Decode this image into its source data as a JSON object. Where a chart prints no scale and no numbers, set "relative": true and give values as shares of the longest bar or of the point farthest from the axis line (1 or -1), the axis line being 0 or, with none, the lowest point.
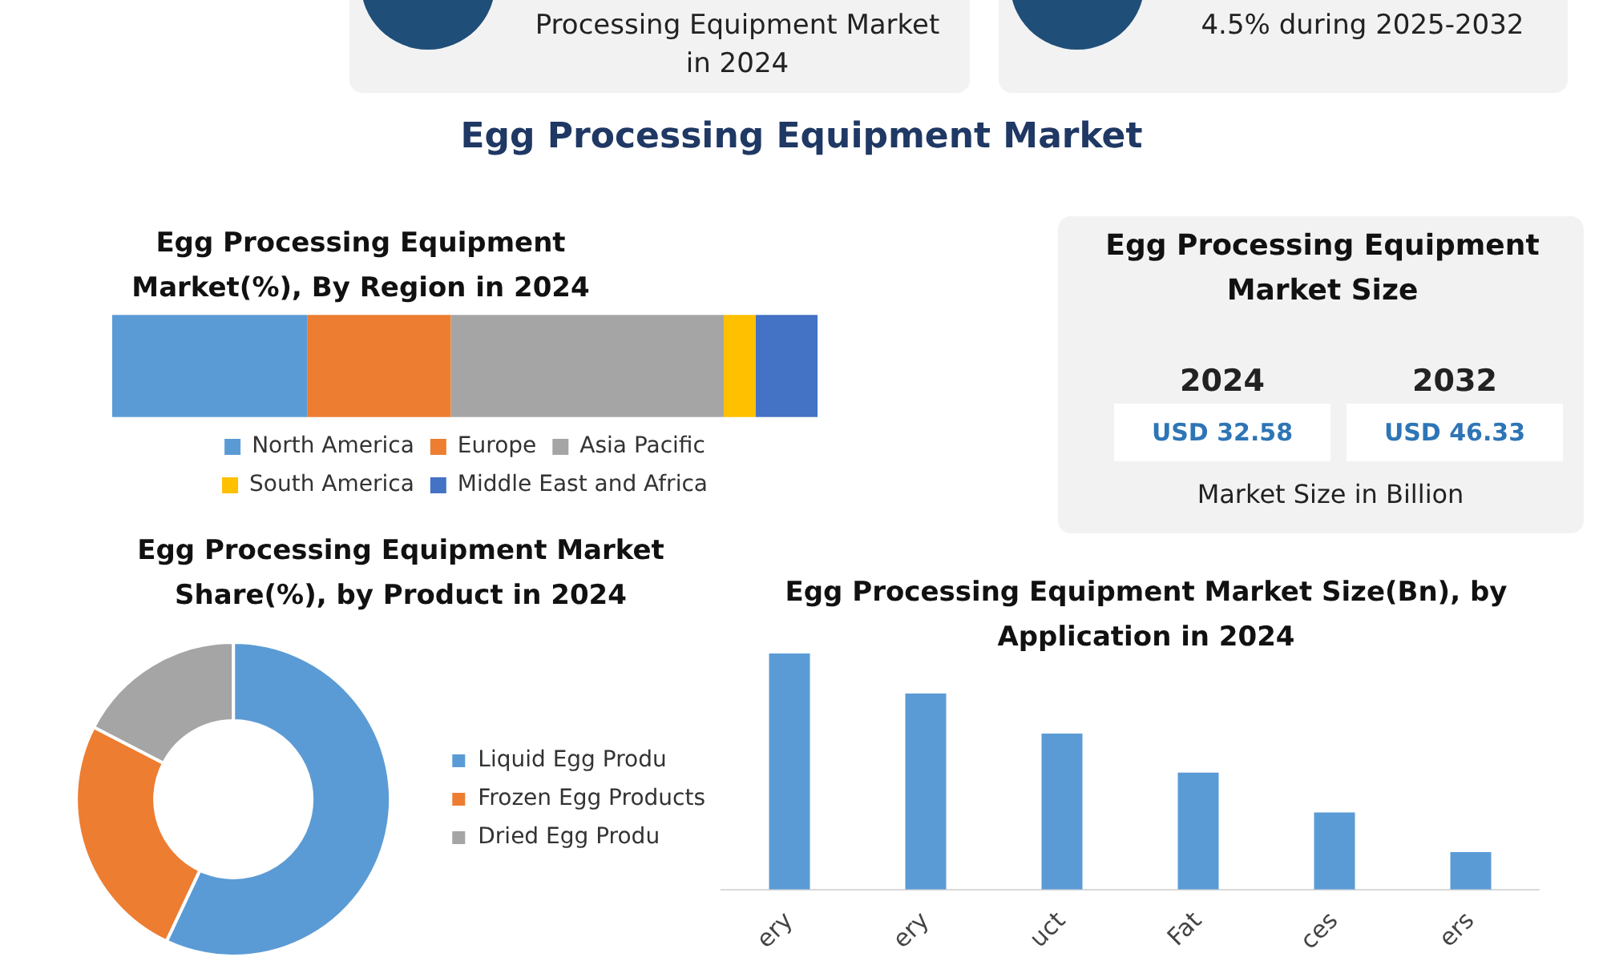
{
  "chart_data": [
    {
      "type": "other",
      "title": "Egg Processing Equipment Market",
      "annotations": [
        "Processing Equipment Market in 2024",
        "4.5% during 2025-2032"
      ]
    },
    {
      "type": "bar",
      "title": "Egg Processing Equipment Market(%), By Region in 2024",
      "orientation": "horizontal",
      "stacked": true,
      "relative": true,
      "legend": "bottom",
      "categories": [
        null
      ],
      "series": [
        {
          "name": "North America",
          "color": "#5b9bd5",
          "values": [
            0.277
          ]
        },
        {
          "name": "Europe",
          "color": "#ed7d31",
          "values": [
            0.203
          ]
        },
        {
          "name": "Asia Pacific",
          "color": "#a5a5a5",
          "values": [
            0.387
          ]
        },
        {
          "name": "South America",
          "color": "#ffc000",
          "values": [
            0.045
          ]
        },
        {
          "name": "Middle East and Africa",
          "color": "#4472c4",
          "values": [
            0.088
          ]
        }
      ]
    },
    {
      "type": "other",
      "title": "Egg Processing Equipment Market Size",
      "annotations": [
        "2024",
        "USD 32.58",
        "2032",
        "USD 46.33",
        "Market Size in Billion"
      ]
    },
    {
      "type": "donut",
      "title": "Egg Processing Equipment Market Share(%), by Product in 2024",
      "legend": "right",
      "categories": [
        "Liquid Egg Produ",
        "Frozen Egg Products",
        "Dried Egg Produ"
      ],
      "values": [
        57,
        25.6,
        17.4
      ],
      "colors": [
        "#5b9bd5",
        "#ed7d31",
        "#a5a5a5"
      ]
    },
    {
      "type": "bar",
      "title": "Egg Processing Equipment Market Size(Bn), by Application in 2024",
      "relative": true,
      "categories": [
        "ery",
        "ery",
        "uct",
        "Fat",
        "ces",
        "ers"
      ],
      "values": [
        1,
        0.83,
        0.661,
        0.495,
        0.327,
        0.159
      ],
      "color": "#5b9bd5"
    }
  ]
}
